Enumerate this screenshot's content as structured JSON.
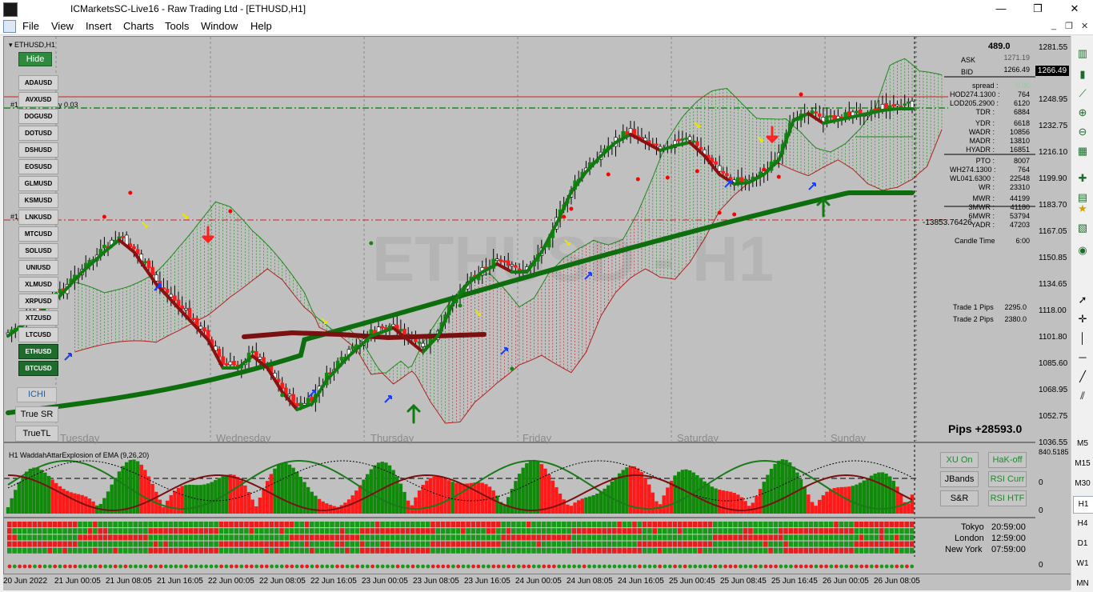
{
  "window": {
    "title": "ICMarketsSC-Live16 - Raw Trading Ltd - [ETHUSD,H1]",
    "minimize_glyph": "—",
    "restore_glyph": "❐",
    "close_glyph": "✕"
  },
  "menu": {
    "items": [
      "File",
      "View",
      "Insert",
      "Charts",
      "Tools",
      "Window",
      "Help"
    ],
    "mdi_minimize": "_",
    "mdi_restore": "❐",
    "mdi_close": "✕"
  },
  "chart": {
    "symbol_tf": "ETHUSD,H1",
    "watermark": "ETHUSD - H1",
    "hide_label": "Hide",
    "line1_label": "#1",
    "line1_value": "y 0.03",
    "line2_label": "#1",
    "pips_total": "Pips +28593.0",
    "overlap_label": "-13853.76426",
    "days": [
      "Tuesday",
      "Wednesday",
      "Thursday",
      "Friday",
      "Saturday",
      "Sunday"
    ],
    "colors": {
      "up": "#118a0c",
      "down": "#ff1a1a",
      "ema_fast_up": "#117a11",
      "ema_fast_down": "#8b1010",
      "slow": "#0e6e0e",
      "cloud_green": "#1e8a1e",
      "cloud_red": "#b02020"
    }
  },
  "symbols": {
    "items": [
      "ADAUSD",
      "AVXUSD",
      "DOGUSD",
      "DOTUSD",
      "DSHUSD",
      "EOSUSD",
      "GLMUSD",
      "KSMUSD",
      "LNKUSD",
      "MTCUSD",
      "SOLUSD",
      "UNIUSD",
      "XLMUSD",
      "XRPUSD",
      "XTZUSD",
      "LTCUSD",
      "ETHUSD",
      "BTCUSD"
    ],
    "active": [
      "ETHUSD",
      "BTCUSD"
    ]
  },
  "controls": {
    "ichi": "ICHI",
    "true_sr": "True SR",
    "true_tl": "TrueTL"
  },
  "info": {
    "top_value": "489.0",
    "ask_label": "ASK",
    "ask_value": "1271.19",
    "bid_label": "BID",
    "bid_value": "1266.49",
    "spread_label": "spread :",
    "spread_value": "0.00",
    "rows": [
      {
        "label": "HOD274.1300 :",
        "value": "764"
      },
      {
        "label": "LOD205.2900 :",
        "value": "6120"
      },
      {
        "label": "TDR :",
        "value": "6884"
      },
      {
        "label": "YDR :",
        "value": "6618"
      },
      {
        "label": "WADR :",
        "value": "10856"
      },
      {
        "label": "MADR :",
        "value": "13810"
      },
      {
        "label": "HYADR :",
        "value": "16851"
      },
      {
        "label": "PTO :",
        "value": "8007"
      },
      {
        "label": "WH274.1300 :",
        "value": "764"
      },
      {
        "label": "WL041.6300 :",
        "value": "22548"
      },
      {
        "label": "WR :",
        "value": "23310"
      },
      {
        "label": "MWR :",
        "value": "44199"
      },
      {
        "label": "3MWR :",
        "value": "41180"
      },
      {
        "label": "6MWR :",
        "value": "53794"
      },
      {
        "label": "YADR :",
        "value": "47203"
      }
    ],
    "candle_time_label": "Candle Time",
    "candle_time_value": "6:00",
    "trade1_label": "Trade 1 Pips",
    "trade1_value": "2295.0",
    "trade2_label": "Trade 2 Pips",
    "trade2_value": "2380.0"
  },
  "price_axis": {
    "ticks": [
      "1281.55",
      "1266.49",
      "1248.95",
      "1232.75",
      "1216.10",
      "1199.90",
      "1183.70",
      "1167.05",
      "1150.85",
      "1134.65",
      "1118.00",
      "1101.80",
      "1085.60",
      "1068.95",
      "1052.75",
      "1036.55"
    ],
    "current": "1266.49",
    "osc_ticks": [
      "840.5185",
      "0",
      "0"
    ]
  },
  "oscillator": {
    "title": "H1 WaddahAttarExplosion of EMA (9,26,20)",
    "buttons": [
      "XU On",
      "HaK-off",
      "JBands",
      "RSI Curr",
      "S&R",
      "RSI HTF"
    ]
  },
  "sessions": [
    {
      "city": "Tokyo",
      "time": "20:59:00"
    },
    {
      "city": "London",
      "time": "12:59:00"
    },
    {
      "city": "New York",
      "time": "07:59:00"
    }
  ],
  "time_axis": {
    "ticks": [
      "20 Jun 2022",
      "21 Jun 00:05",
      "21 Jun 08:05",
      "21 Jun 16:05",
      "22 Jun 00:05",
      "22 Jun 08:05",
      "22 Jun 16:05",
      "23 Jun 00:05",
      "23 Jun 08:05",
      "23 Jun 16:05",
      "24 Jun 00:05",
      "24 Jun 08:05",
      "24 Jun 16:05",
      "25 Jun 00:45",
      "25 Jun 08:45",
      "25 Jun 16:45",
      "26 Jun 00:05",
      "26 Jun 08:05"
    ]
  },
  "right_toolbar": {
    "timeframes": [
      "M5",
      "M15",
      "M30",
      "H1",
      "H4",
      "D1",
      "W1",
      "MN"
    ]
  }
}
